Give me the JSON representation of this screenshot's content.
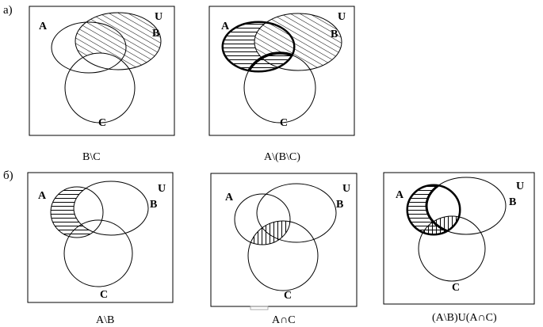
{
  "row_labels": {
    "a": "а)",
    "b": "б)"
  },
  "set_labels": {
    "A": "A",
    "B": "B",
    "C": "C",
    "U": "U"
  },
  "captions": {
    "a1": "B\\C",
    "a2": "A\\(B\\C)",
    "b1": "A\\B",
    "b2": "A∩C",
    "b3": "(A\\B)U(A∩C)"
  }
}
